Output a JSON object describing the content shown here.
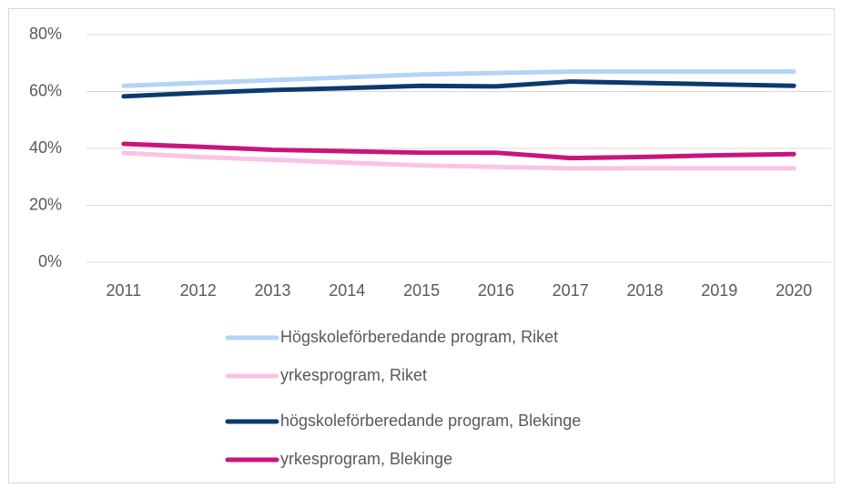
{
  "chart_data": {
    "type": "line",
    "categories": [
      "2011",
      "2012",
      "2013",
      "2014",
      "2015",
      "2016",
      "2017",
      "2018",
      "2019",
      "2020"
    ],
    "series": [
      {
        "name": "Högskoleförberedande program, Riket",
        "color": "#b4d4f7",
        "values": [
          62,
          63,
          64,
          65,
          66,
          66.5,
          67,
          67,
          67,
          67
        ]
      },
      {
        "name": "yrkesprogram, Riket",
        "color": "#fbc3e3",
        "values": [
          38.4,
          37,
          36,
          35,
          34,
          33.5,
          33,
          33,
          33,
          33
        ]
      },
      {
        "name": "högskoleförberedande program, Blekinge",
        "color": "#0b3a6e",
        "values": [
          58.3,
          59.5,
          60.5,
          61.2,
          62,
          61.8,
          63.5,
          63,
          62.5,
          62
        ]
      },
      {
        "name": "yrkesprogram, Blekinge",
        "color": "#c9157c",
        "values": [
          41.6,
          40.6,
          39.5,
          39,
          38.5,
          38.5,
          36.6,
          37,
          37.6,
          38
        ]
      }
    ],
    "ylim": [
      0,
      80
    ],
    "yticks": [
      {
        "value": 0,
        "label": "0%"
      },
      {
        "value": 20,
        "label": "20%"
      },
      {
        "value": 40,
        "label": "40%"
      },
      {
        "value": 60,
        "label": "60%"
      },
      {
        "value": 80,
        "label": "80%"
      }
    ],
    "grid": true,
    "legend": "bottom"
  }
}
